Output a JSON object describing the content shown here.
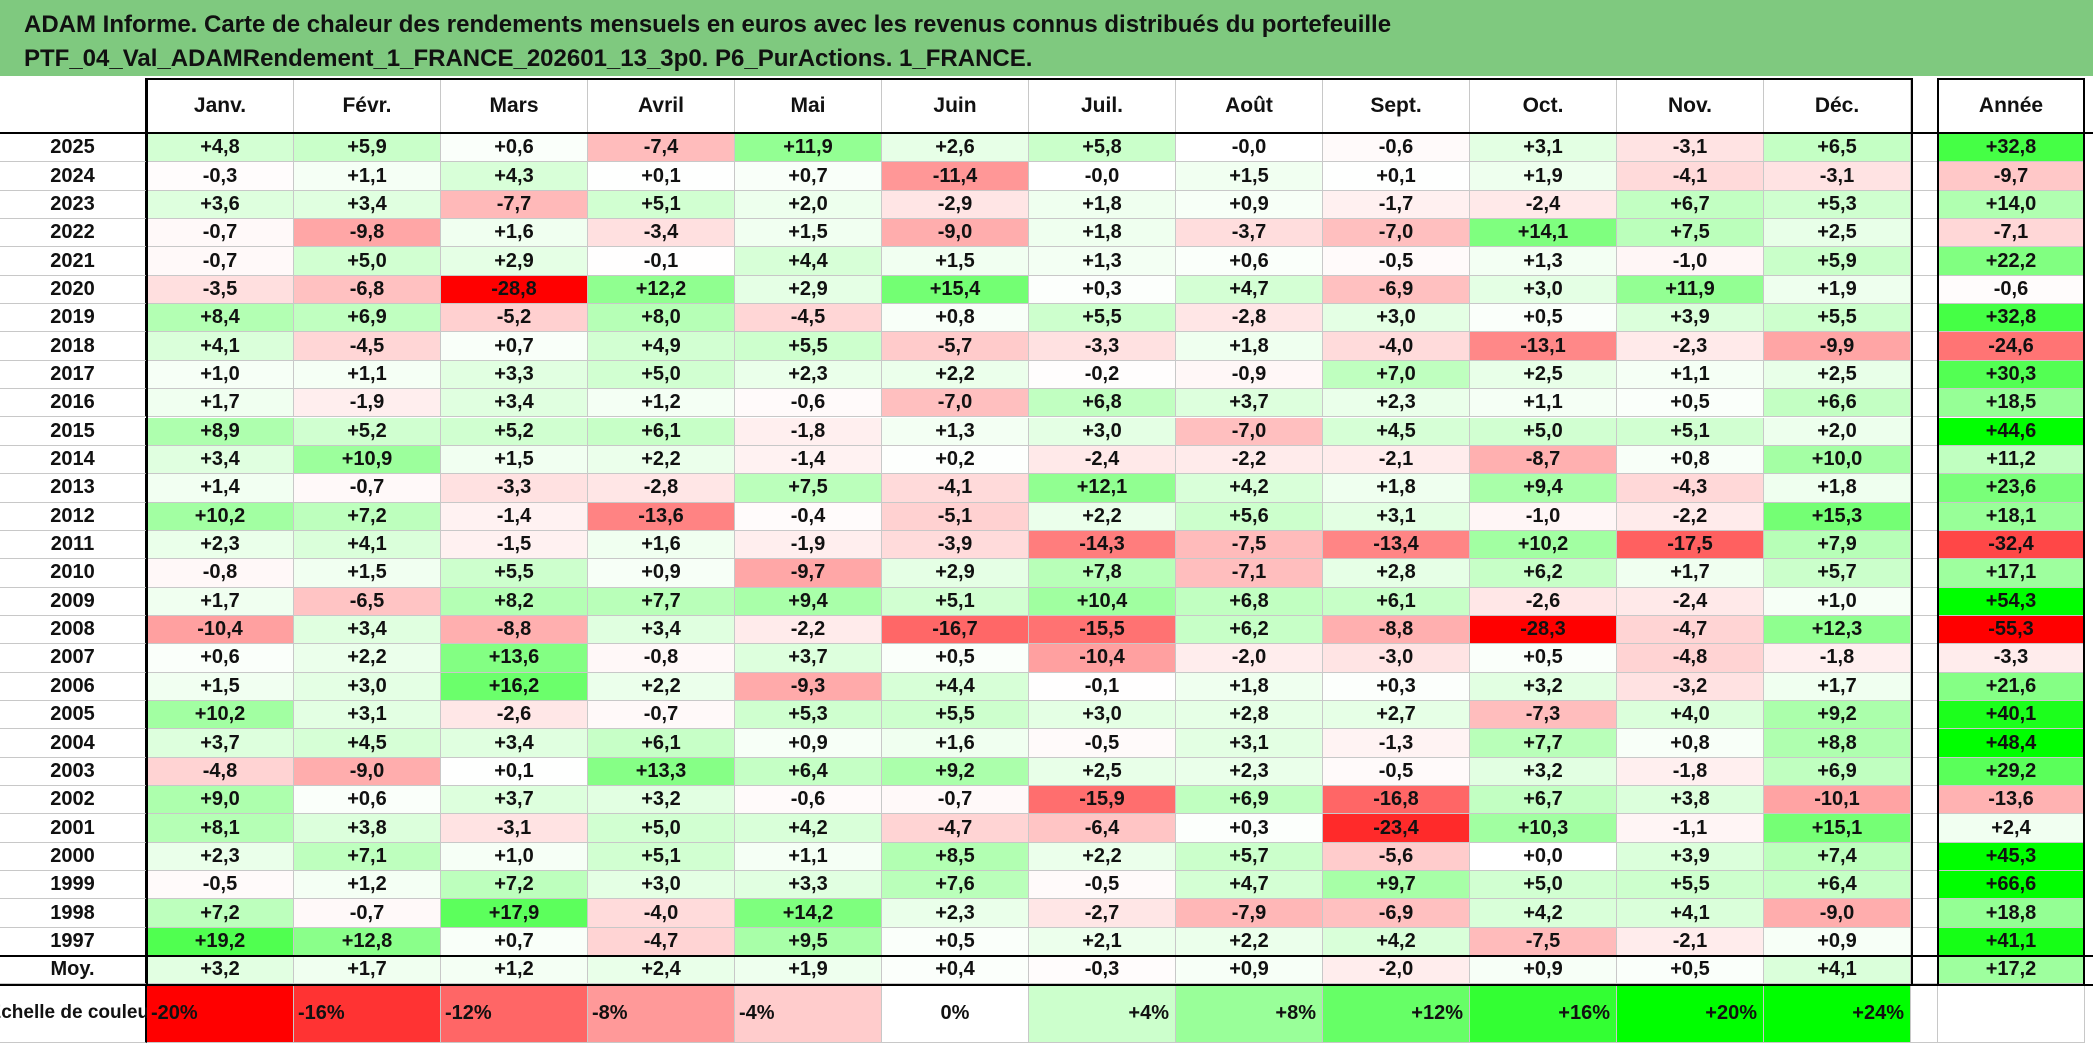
{
  "title": {
    "line1": "ADAM Informe. Carte de chaleur des rendements mensuels en euros avec les revenus connus distribués du portefeuille",
    "line2": "PTF_04_Val_ADAMRendement_1_FRANCE_202601_13_3p0. P6_PurActions. 1_FRANCE."
  },
  "chart_data": {
    "type": "heatmap",
    "columns": [
      "Janv.",
      "Févr.",
      "Mars",
      "Avril",
      "Mai",
      "Juin",
      "Juil.",
      "Août",
      "Sept.",
      "Oct.",
      "Nov.",
      "Déc."
    ],
    "year_column": "Année",
    "rows": [
      {
        "year": "2025",
        "values": [
          "+4,8",
          "+5,9",
          "+0,6",
          "-7,4",
          "+11,9",
          "+2,6",
          "+5,8",
          "-0,0",
          "-0,6",
          "+3,1",
          "-3,1",
          "+6,5"
        ],
        "annual": "+32,8"
      },
      {
        "year": "2024",
        "values": [
          "-0,3",
          "+1,1",
          "+4,3",
          "+0,1",
          "+0,7",
          "-11,4",
          "-0,0",
          "+1,5",
          "+0,1",
          "+1,9",
          "-4,1",
          "-3,1"
        ],
        "annual": "-9,7"
      },
      {
        "year": "2023",
        "values": [
          "+3,6",
          "+3,4",
          "-7,7",
          "+5,1",
          "+2,0",
          "-2,9",
          "+1,8",
          "+0,9",
          "-1,7",
          "-2,4",
          "+6,7",
          "+5,3"
        ],
        "annual": "+14,0"
      },
      {
        "year": "2022",
        "values": [
          "-0,7",
          "-9,8",
          "+1,6",
          "-3,4",
          "+1,5",
          "-9,0",
          "+1,8",
          "-3,7",
          "-7,0",
          "+14,1",
          "+7,5",
          "+2,5"
        ],
        "annual": "-7,1"
      },
      {
        "year": "2021",
        "values": [
          "-0,7",
          "+5,0",
          "+2,9",
          "-0,1",
          "+4,4",
          "+1,5",
          "+1,3",
          "+0,6",
          "-0,5",
          "+1,3",
          "-1,0",
          "+5,9"
        ],
        "annual": "+22,2"
      },
      {
        "year": "2020",
        "values": [
          "-3,5",
          "-6,8",
          "-28,8",
          "+12,2",
          "+2,9",
          "+15,4",
          "+0,3",
          "+4,7",
          "-6,9",
          "+3,0",
          "+11,9",
          "+1,9"
        ],
        "annual": "-0,6"
      },
      {
        "year": "2019",
        "values": [
          "+8,4",
          "+6,9",
          "-5,2",
          "+8,0",
          "-4,5",
          "+0,8",
          "+5,5",
          "-2,8",
          "+3,0",
          "+0,5",
          "+3,9",
          "+5,5"
        ],
        "annual": "+32,8"
      },
      {
        "year": "2018",
        "values": [
          "+4,1",
          "-4,5",
          "+0,7",
          "+4,9",
          "+5,5",
          "-5,7",
          "-3,3",
          "+1,8",
          "-4,0",
          "-13,1",
          "-2,3",
          "-9,9"
        ],
        "annual": "-24,6"
      },
      {
        "year": "2017",
        "values": [
          "+1,0",
          "+1,1",
          "+3,3",
          "+5,0",
          "+2,3",
          "+2,2",
          "-0,2",
          "-0,9",
          "+7,0",
          "+2,5",
          "+1,1",
          "+2,5"
        ],
        "annual": "+30,3"
      },
      {
        "year": "2016",
        "values": [
          "+1,7",
          "-1,9",
          "+3,4",
          "+1,2",
          "-0,6",
          "-7,0",
          "+6,8",
          "+3,7",
          "+2,3",
          "+1,1",
          "+0,5",
          "+6,6"
        ],
        "annual": "+18,5"
      },
      {
        "year": "2015",
        "values": [
          "+8,9",
          "+5,2",
          "+5,2",
          "+6,1",
          "-1,8",
          "+1,3",
          "+3,0",
          "-7,0",
          "+4,5",
          "+5,0",
          "+5,1",
          "+2,0"
        ],
        "annual": "+44,6"
      },
      {
        "year": "2014",
        "values": [
          "+3,4",
          "+10,9",
          "+1,5",
          "+2,2",
          "-1,4",
          "+0,2",
          "-2,4",
          "-2,2",
          "-2,1",
          "-8,7",
          "+0,8",
          "+10,0"
        ],
        "annual": "+11,2"
      },
      {
        "year": "2013",
        "values": [
          "+1,4",
          "-0,7",
          "-3,3",
          "-2,8",
          "+7,5",
          "-4,1",
          "+12,1",
          "+4,2",
          "+1,8",
          "+9,4",
          "-4,3",
          "+1,8"
        ],
        "annual": "+23,6"
      },
      {
        "year": "2012",
        "values": [
          "+10,2",
          "+7,2",
          "-1,4",
          "-13,6",
          "-0,4",
          "-5,1",
          "+2,2",
          "+5,6",
          "+3,1",
          "-1,0",
          "-2,2",
          "+15,3"
        ],
        "annual": "+18,1"
      },
      {
        "year": "2011",
        "values": [
          "+2,3",
          "+4,1",
          "-1,5",
          "+1,6",
          "-1,9",
          "-3,9",
          "-14,3",
          "-7,5",
          "-13,4",
          "+10,2",
          "-17,5",
          "+7,9"
        ],
        "annual": "-32,4"
      },
      {
        "year": "2010",
        "values": [
          "-0,8",
          "+1,5",
          "+5,5",
          "+0,9",
          "-9,7",
          "+2,9",
          "+7,8",
          "-7,1",
          "+2,8",
          "+6,2",
          "+1,7",
          "+5,7"
        ],
        "annual": "+17,1"
      },
      {
        "year": "2009",
        "values": [
          "+1,7",
          "-6,5",
          "+8,2",
          "+7,7",
          "+9,4",
          "+5,1",
          "+10,4",
          "+6,8",
          "+6,1",
          "-2,6",
          "-2,4",
          "+1,0"
        ],
        "annual": "+54,3"
      },
      {
        "year": "2008",
        "values": [
          "-10,4",
          "+3,4",
          "-8,8",
          "+3,4",
          "-2,2",
          "-16,7",
          "-15,5",
          "+6,2",
          "-8,8",
          "-28,3",
          "-4,7",
          "+12,3"
        ],
        "annual": "-55,3"
      },
      {
        "year": "2007",
        "values": [
          "+0,6",
          "+2,2",
          "+13,6",
          "-0,8",
          "+3,7",
          "+0,5",
          "-10,4",
          "-2,0",
          "-3,0",
          "+0,5",
          "-4,8",
          "-1,8"
        ],
        "annual": "-3,3"
      },
      {
        "year": "2006",
        "values": [
          "+1,5",
          "+3,0",
          "+16,2",
          "+2,2",
          "-9,3",
          "+4,4",
          "-0,1",
          "+1,8",
          "+0,3",
          "+3,2",
          "-3,2",
          "+1,7"
        ],
        "annual": "+21,6"
      },
      {
        "year": "2005",
        "values": [
          "+10,2",
          "+3,1",
          "-2,6",
          "-0,7",
          "+5,3",
          "+5,5",
          "+3,0",
          "+2,8",
          "+2,7",
          "-7,3",
          "+4,0",
          "+9,2"
        ],
        "annual": "+40,1"
      },
      {
        "year": "2004",
        "values": [
          "+3,7",
          "+4,5",
          "+3,4",
          "+6,1",
          "+0,9",
          "+1,6",
          "-0,5",
          "+3,1",
          "-1,3",
          "+7,7",
          "+0,8",
          "+8,8"
        ],
        "annual": "+48,4"
      },
      {
        "year": "2003",
        "values": [
          "-4,8",
          "-9,0",
          "+0,1",
          "+13,3",
          "+6,4",
          "+9,2",
          "+2,5",
          "+2,3",
          "-0,5",
          "+3,2",
          "-1,8",
          "+6,9"
        ],
        "annual": "+29,2"
      },
      {
        "year": "2002",
        "values": [
          "+9,0",
          "+0,6",
          "+3,7",
          "+3,2",
          "-0,6",
          "-0,7",
          "-15,9",
          "+6,9",
          "-16,8",
          "+6,7",
          "+3,8",
          "-10,1"
        ],
        "annual": "-13,6"
      },
      {
        "year": "2001",
        "values": [
          "+8,1",
          "+3,8",
          "-3,1",
          "+5,0",
          "+4,2",
          "-4,7",
          "-6,4",
          "+0,3",
          "-23,4",
          "+10,3",
          "-1,1",
          "+15,1"
        ],
        "annual": "+2,4"
      },
      {
        "year": "2000",
        "values": [
          "+2,3",
          "+7,1",
          "+1,0",
          "+5,1",
          "+1,1",
          "+8,5",
          "+2,2",
          "+5,7",
          "-5,6",
          "+0,0",
          "+3,9",
          "+7,4"
        ],
        "annual": "+45,3"
      },
      {
        "year": "1999",
        "values": [
          "-0,5",
          "+1,2",
          "+7,2",
          "+3,0",
          "+3,3",
          "+7,6",
          "-0,5",
          "+4,7",
          "+9,7",
          "+5,0",
          "+5,5",
          "+6,4"
        ],
        "annual": "+66,6"
      },
      {
        "year": "1998",
        "values": [
          "+7,2",
          "-0,7",
          "+17,9",
          "-4,0",
          "+14,2",
          "+2,3",
          "-2,7",
          "-7,9",
          "-6,9",
          "+4,2",
          "+4,1",
          "-9,0"
        ],
        "annual": "+18,8"
      },
      {
        "year": "1997",
        "values": [
          "+19,2",
          "+12,8",
          "+0,7",
          "-4,7",
          "+9,5",
          "+0,5",
          "+2,1",
          "+2,2",
          "+4,2",
          "-7,5",
          "-2,1",
          "+0,9"
        ],
        "annual": "+41,1"
      }
    ],
    "average": {
      "label": "Moy.",
      "values": [
        "+3,2",
        "+1,7",
        "+1,2",
        "+2,4",
        "+1,9",
        "+0,4",
        "-0,3",
        "+0,9",
        "-2,0",
        "+0,9",
        "+0,5",
        "+4,1"
      ],
      "annual": "+17,2"
    },
    "color_scale": {
      "label": "Echelle de couleur",
      "labels": [
        "-20%",
        "-16%",
        "-12%",
        "-8%",
        "-4%",
        "0%",
        "+4%",
        "+8%",
        "+12%",
        "+16%",
        "+20%",
        "+24%"
      ],
      "values": [
        -20,
        -16,
        -12,
        -8,
        -4,
        0,
        4,
        8,
        12,
        16,
        20,
        24
      ],
      "negative_color": "#ff0000",
      "positive_color": "#00ff00",
      "neutral_color": "#ffffff"
    }
  }
}
